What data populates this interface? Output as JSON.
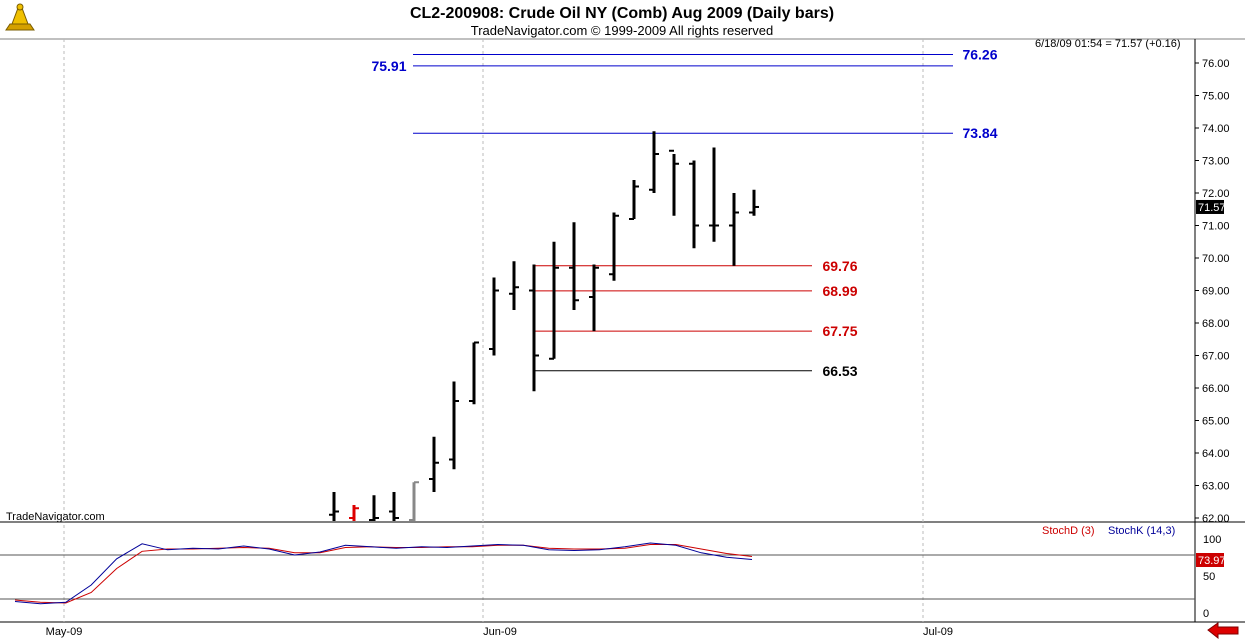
{
  "header": {
    "title": "CL2-200908:  Crude Oil NY (Comb) Aug 2009  (Daily bars)",
    "subtitle": "TradeNavigator.com © 1999-2009 All rights reserved",
    "quote": "6/18/09 01:54 = 71.57 (+0.16)",
    "watermark": "TradeNavigator.com"
  },
  "stoch": {
    "label_d": "StochD (3)",
    "label_k": "StochK (14,3)",
    "current_label": "73.97",
    "ticks": [
      "100",
      "50",
      "0"
    ]
  },
  "colors": {
    "bars": "#000000",
    "resistance": "#0000cc",
    "support": "#cc0000",
    "stoch_d": "#cc0000",
    "stoch_k": "#000099",
    "grid": "#bbbbbb"
  },
  "chart_data": {
    "type": "ohlc",
    "title": "CL2-200908:  Crude Oil NY (Comb) Aug 2009  (Daily bars)",
    "ylim": [
      61.8,
      76.9
    ],
    "y_ticks": [
      "62.00",
      "63.00",
      "64.00",
      "65.00",
      "66.00",
      "67.00",
      "68.00",
      "69.00",
      "70.00",
      "71.00",
      "72.00",
      "73.00",
      "74.00",
      "75.00",
      "76.00"
    ],
    "x_labels": [
      "May-09",
      "Jun-09",
      "Jul-09"
    ],
    "last_price_label": "71.57",
    "bars": [
      {
        "o": 62.1,
        "h": 62.8,
        "l": 61.7,
        "c": 62.2,
        "color": "black"
      },
      {
        "o": 62.0,
        "h": 62.4,
        "l": 61.7,
        "c": 62.3,
        "color": "red"
      },
      {
        "o": 61.9,
        "h": 62.7,
        "l": 61.7,
        "c": 62.0,
        "color": "black"
      },
      {
        "o": 62.2,
        "h": 62.8,
        "l": 61.7,
        "c": 62.0,
        "color": "black"
      },
      {
        "o": 61.9,
        "h": 63.1,
        "l": 61.7,
        "c": 63.1,
        "color": "gray"
      },
      {
        "o": 63.2,
        "h": 64.5,
        "l": 62.8,
        "c": 63.7,
        "color": "black"
      },
      {
        "o": 63.8,
        "h": 66.2,
        "l": 63.5,
        "c": 65.6,
        "color": "black"
      },
      {
        "o": 65.6,
        "h": 67.4,
        "l": 65.5,
        "c": 67.4,
        "color": "black"
      },
      {
        "o": 67.2,
        "h": 69.4,
        "l": 67.0,
        "c": 69.0,
        "color": "black"
      },
      {
        "o": 68.9,
        "h": 69.9,
        "l": 68.4,
        "c": 69.1,
        "color": "black"
      },
      {
        "o": 69.0,
        "h": 69.8,
        "l": 65.9,
        "c": 67.0,
        "color": "black"
      },
      {
        "o": 66.9,
        "h": 70.5,
        "l": 66.9,
        "c": 69.7,
        "color": "black"
      },
      {
        "o": 69.7,
        "h": 71.1,
        "l": 68.4,
        "c": 68.7,
        "color": "black"
      },
      {
        "o": 68.8,
        "h": 69.8,
        "l": 67.75,
        "c": 69.7,
        "color": "black"
      },
      {
        "o": 69.5,
        "h": 71.4,
        "l": 69.3,
        "c": 71.3,
        "color": "black"
      },
      {
        "o": 71.2,
        "h": 72.4,
        "l": 71.2,
        "c": 72.2,
        "color": "black"
      },
      {
        "o": 72.1,
        "h": 73.9,
        "l": 72.0,
        "c": 73.2,
        "color": "black"
      },
      {
        "o": 73.3,
        "h": 73.2,
        "l": 71.3,
        "c": 72.9,
        "color": "black"
      },
      {
        "o": 72.9,
        "h": 73.0,
        "l": 70.3,
        "c": 71.0,
        "color": "black"
      },
      {
        "o": 71.0,
        "h": 73.4,
        "l": 70.5,
        "c": 71.0,
        "color": "black"
      },
      {
        "o": 71.0,
        "h": 72.0,
        "l": 69.76,
        "c": 71.4,
        "color": "black"
      },
      {
        "o": 71.4,
        "h": 72.1,
        "l": 71.3,
        "c": 71.57,
        "color": "black"
      }
    ],
    "levels": [
      {
        "value": 76.26,
        "label": "76.26",
        "color": "blue"
      },
      {
        "value": 75.91,
        "label": "75.91",
        "color": "blue"
      },
      {
        "value": 73.84,
        "label": "73.84",
        "color": "blue"
      },
      {
        "value": 69.76,
        "label": "69.76",
        "color": "red"
      },
      {
        "value": 68.99,
        "label": "68.99",
        "color": "red"
      },
      {
        "value": 67.75,
        "label": "67.75",
        "color": "red"
      },
      {
        "value": 66.53,
        "label": "66.53",
        "color": "black"
      }
    ],
    "stoch_k": [
      18,
      15,
      17,
      40,
      75,
      95,
      87,
      89,
      88,
      92,
      88,
      80,
      84,
      93,
      91,
      89,
      91,
      90,
      92,
      94,
      93,
      87,
      86,
      87,
      91,
      96,
      93,
      83,
      77,
      74
    ],
    "stoch_d": [
      20,
      17,
      16,
      30,
      62,
      85,
      88,
      88,
      89,
      90,
      89,
      83,
      83,
      90,
      91,
      90,
      90,
      91,
      91,
      93,
      93,
      89,
      88,
      88,
      89,
      94,
      94,
      88,
      82,
      78
    ]
  }
}
